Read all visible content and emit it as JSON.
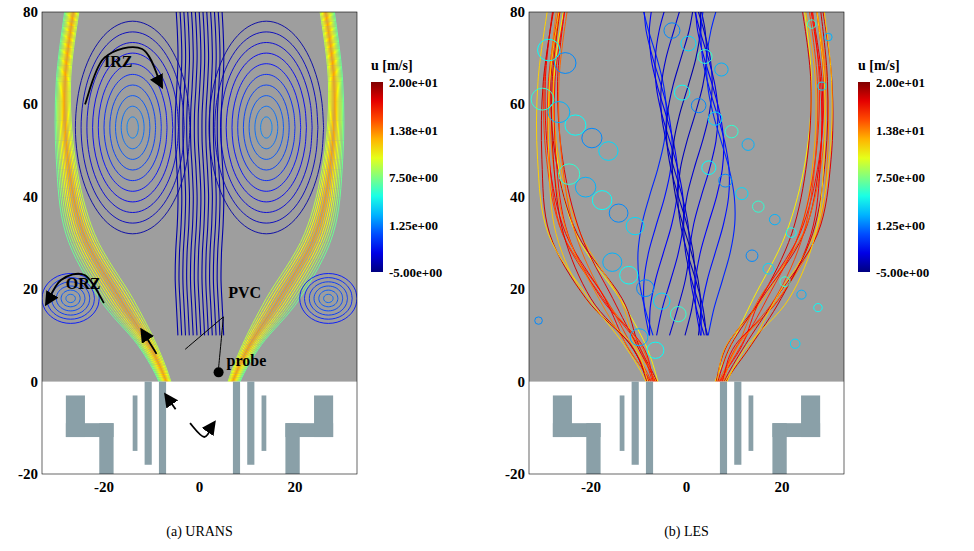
{
  "chart_data": [
    {
      "type": "streamline",
      "title": "(a) URANS",
      "xlim": [
        -33,
        33
      ],
      "ylim": [
        -20,
        80
      ],
      "xticks": [
        -20,
        0,
        20
      ],
      "yticks": [
        -20,
        0,
        20,
        40,
        60,
        80
      ],
      "colorbar": {
        "label": "u [m/s]",
        "range": [
          -5,
          20
        ],
        "ticks": [
          {
            "value": 20,
            "label": "2.00e+01"
          },
          {
            "value": 13.75,
            "label": "1.38e+01"
          },
          {
            "value": 7.5,
            "label": "7.50e+00"
          },
          {
            "value": 1.25,
            "label": "1.25e+00"
          },
          {
            "value": -5,
            "label": "-5.00e+00"
          }
        ]
      },
      "annotations": [
        {
          "text": "IRZ",
          "x": -20,
          "y": 68
        },
        {
          "text": "ORZ",
          "x": -28,
          "y": 20
        },
        {
          "text": "PVC",
          "x": 6,
          "y": 18
        },
        {
          "text": "probe",
          "x": 4,
          "y": 2,
          "marker": "circle"
        }
      ]
    },
    {
      "type": "streamline",
      "title": "(b) LES",
      "xlim": [
        -33,
        33
      ],
      "ylim": [
        -20,
        80
      ],
      "xticks": [
        -20,
        0,
        20
      ],
      "yticks": [
        -20,
        0,
        20,
        40,
        60,
        80
      ],
      "colorbar": {
        "label": "u [m/s]",
        "range": [
          -5,
          20
        ],
        "ticks": [
          {
            "value": 20,
            "label": "2.00e+01"
          },
          {
            "value": 13.75,
            "label": "1.38e+01"
          },
          {
            "value": 7.5,
            "label": "7.50e+00"
          },
          {
            "value": 1.25,
            "label": "1.25e+00"
          },
          {
            "value": -5,
            "label": "-5.00e+00"
          }
        ]
      },
      "annotations": []
    }
  ]
}
